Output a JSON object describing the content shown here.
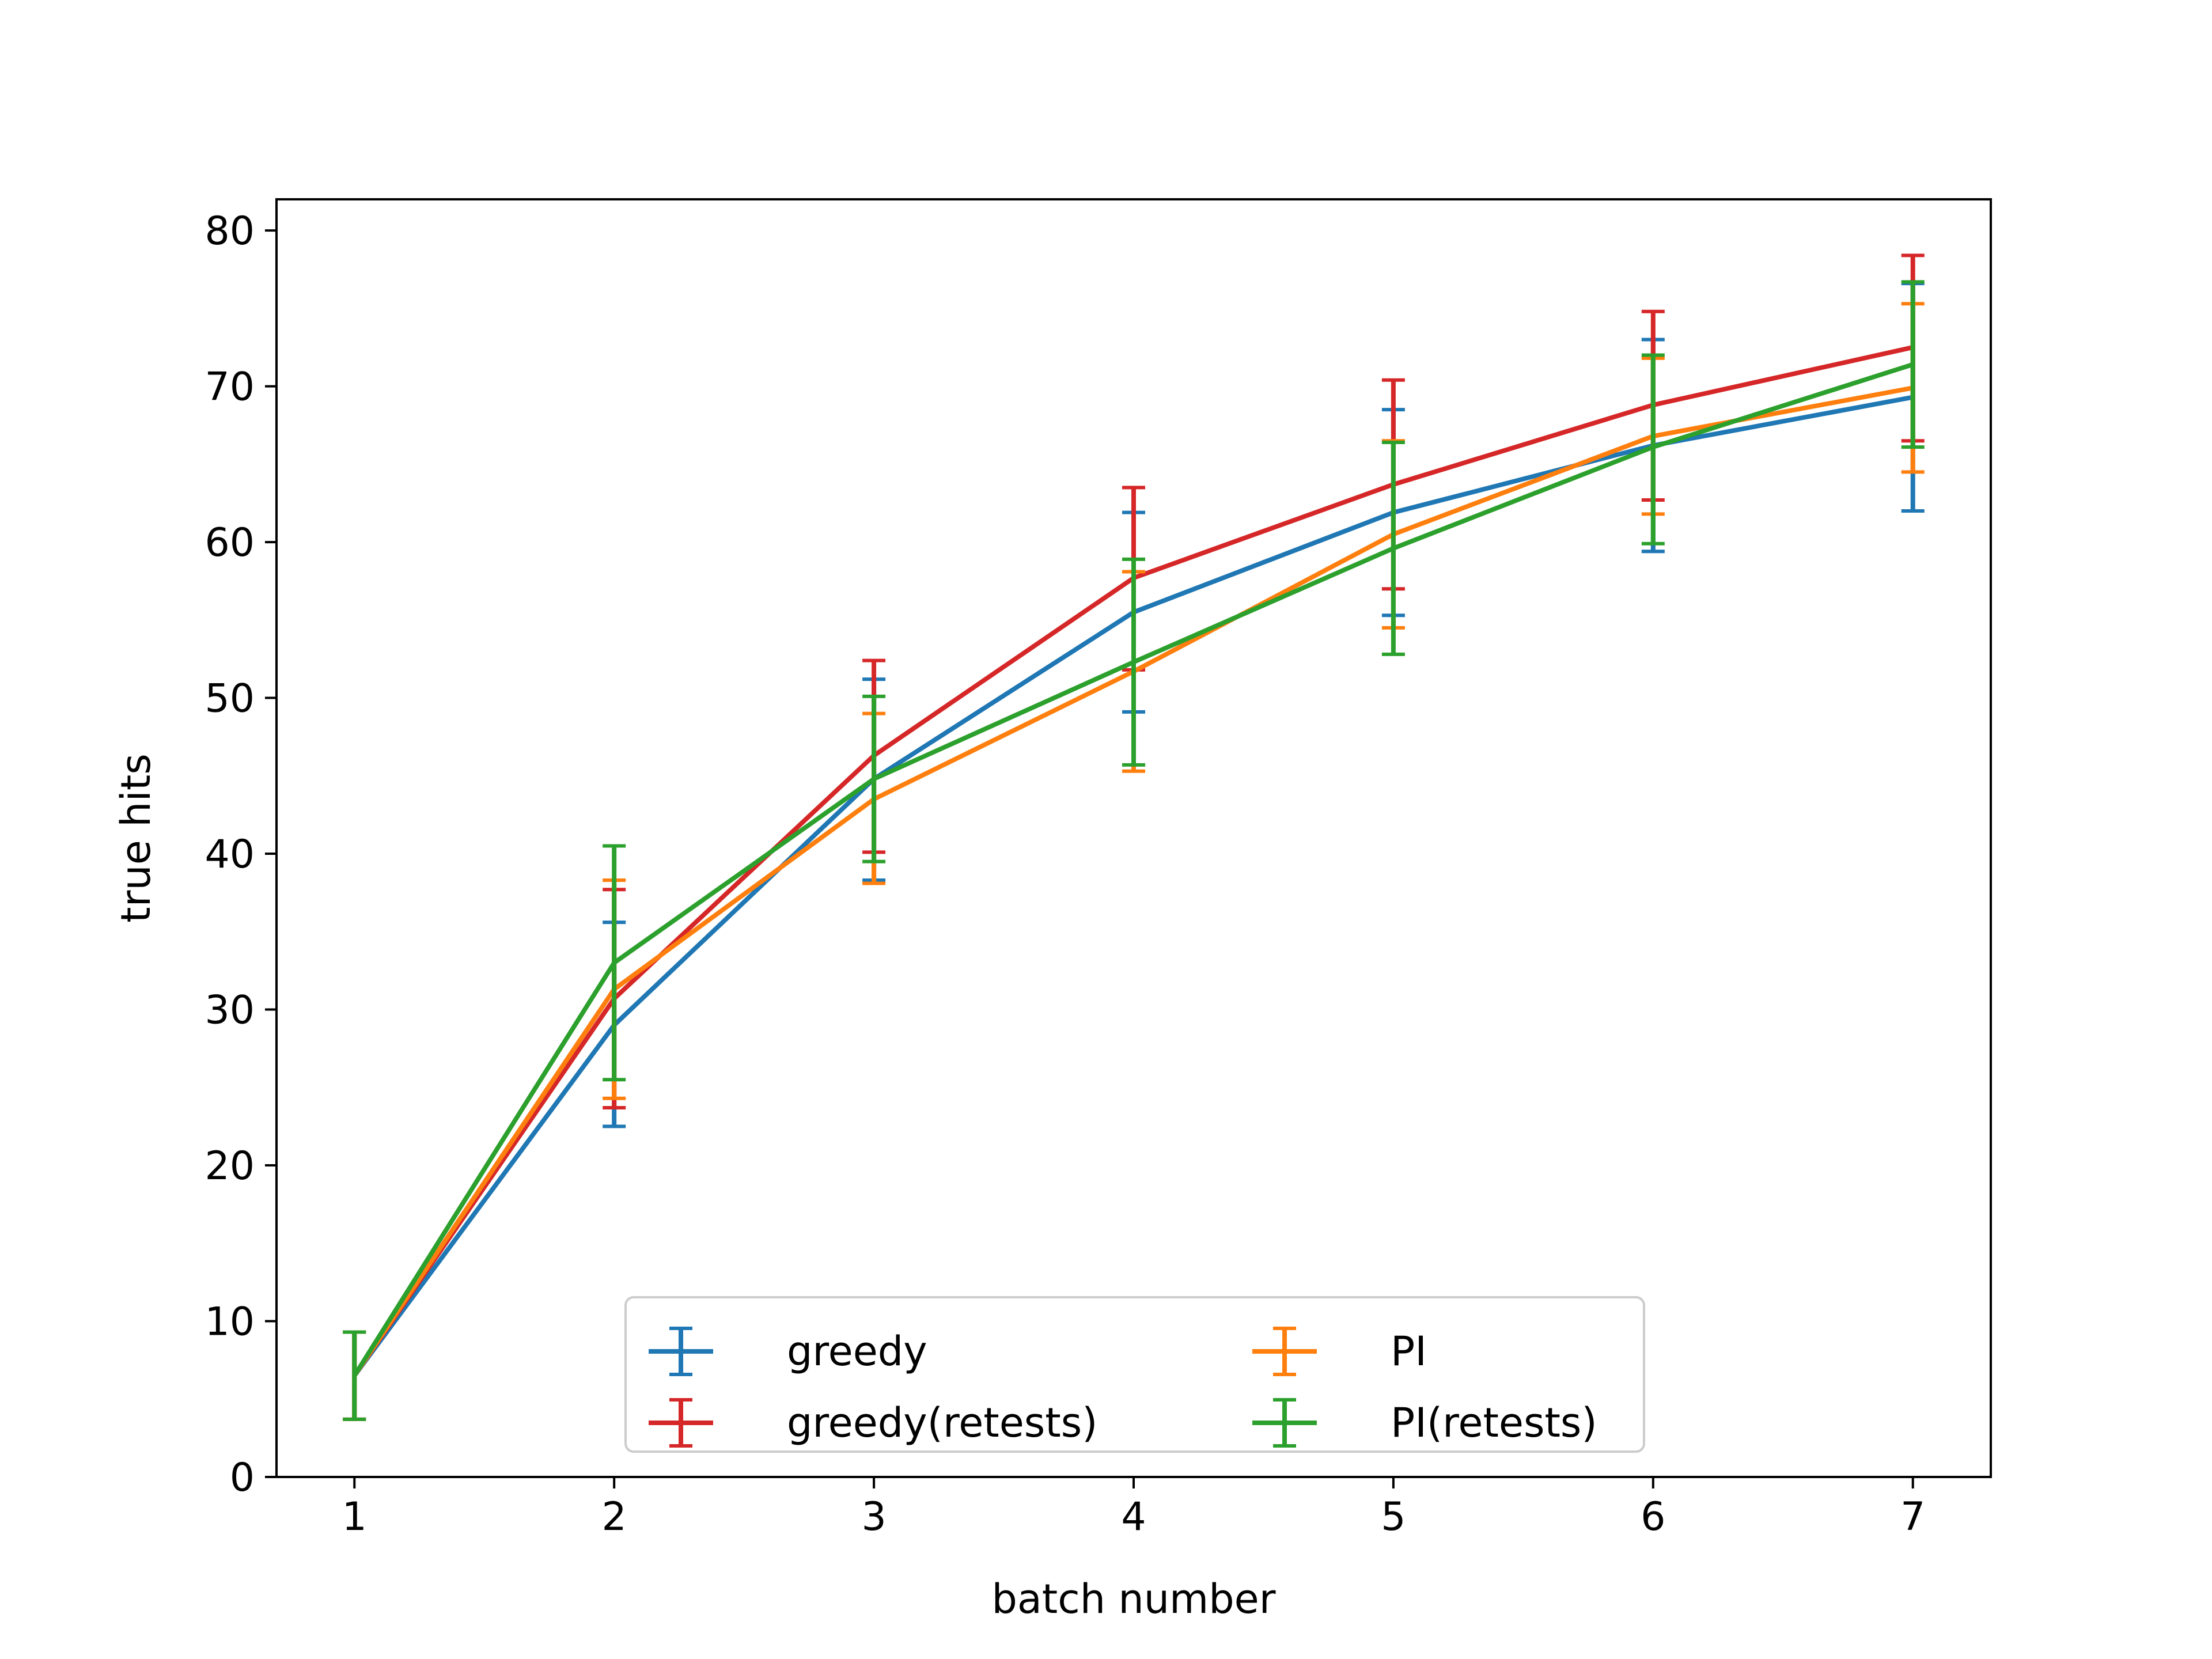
{
  "chart_data": {
    "type": "line",
    "xlabel": "batch number",
    "ylabel": "true hits",
    "x": [
      1,
      2,
      3,
      4,
      5,
      6,
      7
    ],
    "xlim": [
      0.7,
      7.3
    ],
    "ylim": [
      0,
      82
    ],
    "xticks": [
      1,
      2,
      3,
      4,
      5,
      6,
      7
    ],
    "yticks": [
      0,
      10,
      20,
      30,
      40,
      50,
      60,
      70,
      80
    ],
    "grid": false,
    "legend": {
      "position": "lower-center",
      "columns": 2
    },
    "series": [
      {
        "name": "greedy",
        "color": "#1f77b4",
        "values": [
          6.5,
          29.0,
          44.8,
          55.5,
          61.9,
          66.2,
          69.3
        ],
        "lower": [
          3.7,
          22.5,
          38.3,
          49.1,
          55.3,
          59.4,
          62.0
        ],
        "upper": [
          9.3,
          35.6,
          51.2,
          61.9,
          68.5,
          73.0,
          76.6
        ]
      },
      {
        "name": "greedy(retests)",
        "color": "#d62728",
        "values": [
          6.5,
          30.7,
          46.3,
          57.7,
          63.7,
          68.8,
          72.5
        ],
        "lower": [
          3.7,
          23.7,
          40.1,
          51.8,
          57.0,
          62.7,
          66.5
        ],
        "upper": [
          9.3,
          37.7,
          52.4,
          63.5,
          70.4,
          74.8,
          78.4
        ]
      },
      {
        "name": "PI",
        "color": "#ff7f0e",
        "values": [
          6.5,
          31.3,
          43.5,
          51.7,
          60.5,
          66.8,
          69.9
        ],
        "lower": [
          3.7,
          24.3,
          38.1,
          45.3,
          54.5,
          61.8,
          64.5
        ],
        "upper": [
          9.3,
          38.3,
          49.0,
          58.1,
          66.5,
          71.8,
          75.3
        ]
      },
      {
        "name": "PI(retests)",
        "color": "#2ca02c",
        "values": [
          6.5,
          33.0,
          44.8,
          52.3,
          59.6,
          66.1,
          71.4
        ],
        "lower": [
          3.7,
          25.5,
          39.5,
          45.7,
          52.8,
          59.9,
          66.1
        ],
        "upper": [
          9.3,
          40.5,
          50.1,
          58.9,
          66.4,
          72.0,
          76.7
        ]
      }
    ]
  }
}
